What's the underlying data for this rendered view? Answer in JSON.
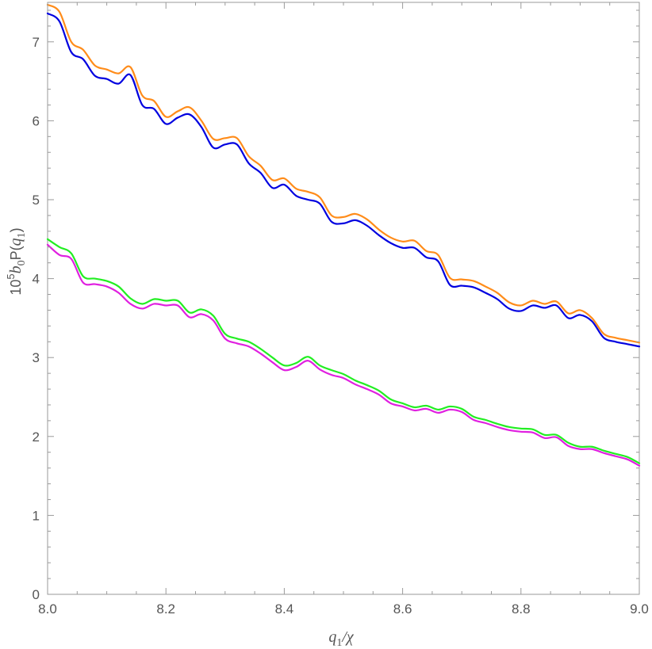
{
  "chart_data": {
    "type": "line",
    "title": "",
    "xlabel_parts": {
      "q": "q",
      "sub": "1",
      "tail": "/χ"
    },
    "ylabel_parts": {
      "pre": "10",
      "sup": "5",
      "b": "b",
      "bsub": "0",
      "mid": "P(",
      "q": "q",
      "qsub": "1",
      "end": ")"
    },
    "xlim": [
      8.0,
      9.0
    ],
    "ylim": [
      0,
      7.5
    ],
    "x_ticks": [
      8.0,
      8.2,
      8.4,
      8.6,
      8.8,
      9.0
    ],
    "x_tick_labels": [
      "8.0",
      "8.2",
      "8.4",
      "8.6",
      "8.8",
      "9.0"
    ],
    "y_ticks": [
      0,
      1,
      2,
      3,
      4,
      5,
      6,
      7
    ],
    "y_tick_labels": [
      "0",
      "1",
      "2",
      "3",
      "4",
      "5",
      "6",
      "7"
    ],
    "grid": false,
    "series": [
      {
        "color": "#ff8c1a",
        "x": [
          8.0,
          8.02,
          8.04,
          8.06,
          8.08,
          8.1,
          8.12,
          8.14,
          8.16,
          8.18,
          8.2,
          8.22,
          8.24,
          8.26,
          8.28,
          8.3,
          8.32,
          8.34,
          8.36,
          8.38,
          8.4,
          8.42,
          8.44,
          8.46,
          8.48,
          8.5,
          8.52,
          8.54,
          8.56,
          8.58,
          8.6,
          8.62,
          8.64,
          8.66,
          8.68,
          8.7,
          8.72,
          8.74,
          8.76,
          8.78,
          8.8,
          8.82,
          8.84,
          8.86,
          8.88,
          8.9,
          8.92,
          8.94,
          8.96,
          8.98,
          9.0
        ],
        "y": [
          7.47,
          7.38,
          7.0,
          6.9,
          6.7,
          6.65,
          6.6,
          6.68,
          6.32,
          6.25,
          6.05,
          6.12,
          6.17,
          6.0,
          5.77,
          5.78,
          5.78,
          5.55,
          5.43,
          5.25,
          5.27,
          5.14,
          5.1,
          5.03,
          4.8,
          4.78,
          4.82,
          4.75,
          4.62,
          4.52,
          4.47,
          4.48,
          4.35,
          4.3,
          4.01,
          3.99,
          3.97,
          3.9,
          3.82,
          3.7,
          3.66,
          3.72,
          3.68,
          3.71,
          3.56,
          3.6,
          3.5,
          3.3,
          3.25,
          3.22,
          3.19
        ]
      },
      {
        "color": "#0000e0",
        "x": [
          8.0,
          8.02,
          8.04,
          8.06,
          8.08,
          8.1,
          8.12,
          8.14,
          8.16,
          8.18,
          8.2,
          8.22,
          8.24,
          8.26,
          8.28,
          8.3,
          8.32,
          8.34,
          8.36,
          8.38,
          8.4,
          8.42,
          8.44,
          8.46,
          8.48,
          8.5,
          8.52,
          8.54,
          8.56,
          8.58,
          8.6,
          8.62,
          8.64,
          8.66,
          8.68,
          8.7,
          8.72,
          8.74,
          8.76,
          8.78,
          8.8,
          8.82,
          8.84,
          8.86,
          8.88,
          8.9,
          8.92,
          8.94,
          8.96,
          8.98,
          9.0
        ],
        "y": [
          7.36,
          7.26,
          6.87,
          6.78,
          6.57,
          6.53,
          6.47,
          6.58,
          6.2,
          6.15,
          5.96,
          6.04,
          6.08,
          5.92,
          5.66,
          5.7,
          5.7,
          5.46,
          5.34,
          5.15,
          5.19,
          5.05,
          5.0,
          4.95,
          4.72,
          4.7,
          4.74,
          4.67,
          4.55,
          4.45,
          4.39,
          4.39,
          4.27,
          4.22,
          3.92,
          3.91,
          3.89,
          3.82,
          3.74,
          3.62,
          3.59,
          3.66,
          3.63,
          3.66,
          3.5,
          3.54,
          3.46,
          3.25,
          3.2,
          3.17,
          3.14
        ]
      },
      {
        "color": "#22ee22",
        "x": [
          8.0,
          8.02,
          8.04,
          8.06,
          8.08,
          8.1,
          8.12,
          8.14,
          8.16,
          8.18,
          8.2,
          8.22,
          8.24,
          8.26,
          8.28,
          8.3,
          8.32,
          8.34,
          8.36,
          8.38,
          8.4,
          8.42,
          8.44,
          8.46,
          8.48,
          8.5,
          8.52,
          8.54,
          8.56,
          8.58,
          8.6,
          8.62,
          8.64,
          8.66,
          8.68,
          8.7,
          8.72,
          8.74,
          8.76,
          8.78,
          8.8,
          8.82,
          8.84,
          8.86,
          8.88,
          8.9,
          8.92,
          8.94,
          8.96,
          8.98,
          9.0
        ],
        "y": [
          4.5,
          4.4,
          4.32,
          4.03,
          4.0,
          3.97,
          3.9,
          3.75,
          3.68,
          3.74,
          3.72,
          3.72,
          3.57,
          3.61,
          3.53,
          3.3,
          3.24,
          3.2,
          3.11,
          3.0,
          2.9,
          2.93,
          3.01,
          2.9,
          2.84,
          2.79,
          2.71,
          2.65,
          2.58,
          2.47,
          2.42,
          2.37,
          2.39,
          2.34,
          2.38,
          2.35,
          2.25,
          2.21,
          2.16,
          2.12,
          2.1,
          2.09,
          2.02,
          2.02,
          1.92,
          1.87,
          1.87,
          1.82,
          1.78,
          1.74,
          1.66
        ]
      },
      {
        "color": "#e020e0",
        "x": [
          8.0,
          8.02,
          8.04,
          8.06,
          8.08,
          8.1,
          8.12,
          8.14,
          8.16,
          8.18,
          8.2,
          8.22,
          8.24,
          8.26,
          8.28,
          8.3,
          8.32,
          8.34,
          8.36,
          8.38,
          8.4,
          8.42,
          8.44,
          8.46,
          8.48,
          8.5,
          8.52,
          8.54,
          8.56,
          8.58,
          8.6,
          8.62,
          8.64,
          8.66,
          8.68,
          8.7,
          8.72,
          8.74,
          8.76,
          8.78,
          8.8,
          8.82,
          8.84,
          8.86,
          8.88,
          8.9,
          8.92,
          8.94,
          8.96,
          8.98,
          9.0
        ],
        "y": [
          4.43,
          4.3,
          4.25,
          3.95,
          3.93,
          3.9,
          3.82,
          3.68,
          3.62,
          3.68,
          3.66,
          3.66,
          3.51,
          3.55,
          3.47,
          3.24,
          3.18,
          3.14,
          3.05,
          2.94,
          2.84,
          2.88,
          2.96,
          2.85,
          2.78,
          2.74,
          2.66,
          2.6,
          2.53,
          2.42,
          2.38,
          2.33,
          2.35,
          2.3,
          2.34,
          2.31,
          2.21,
          2.17,
          2.12,
          2.08,
          2.06,
          2.05,
          1.98,
          1.99,
          1.88,
          1.84,
          1.84,
          1.79,
          1.75,
          1.71,
          1.63
        ]
      }
    ]
  }
}
